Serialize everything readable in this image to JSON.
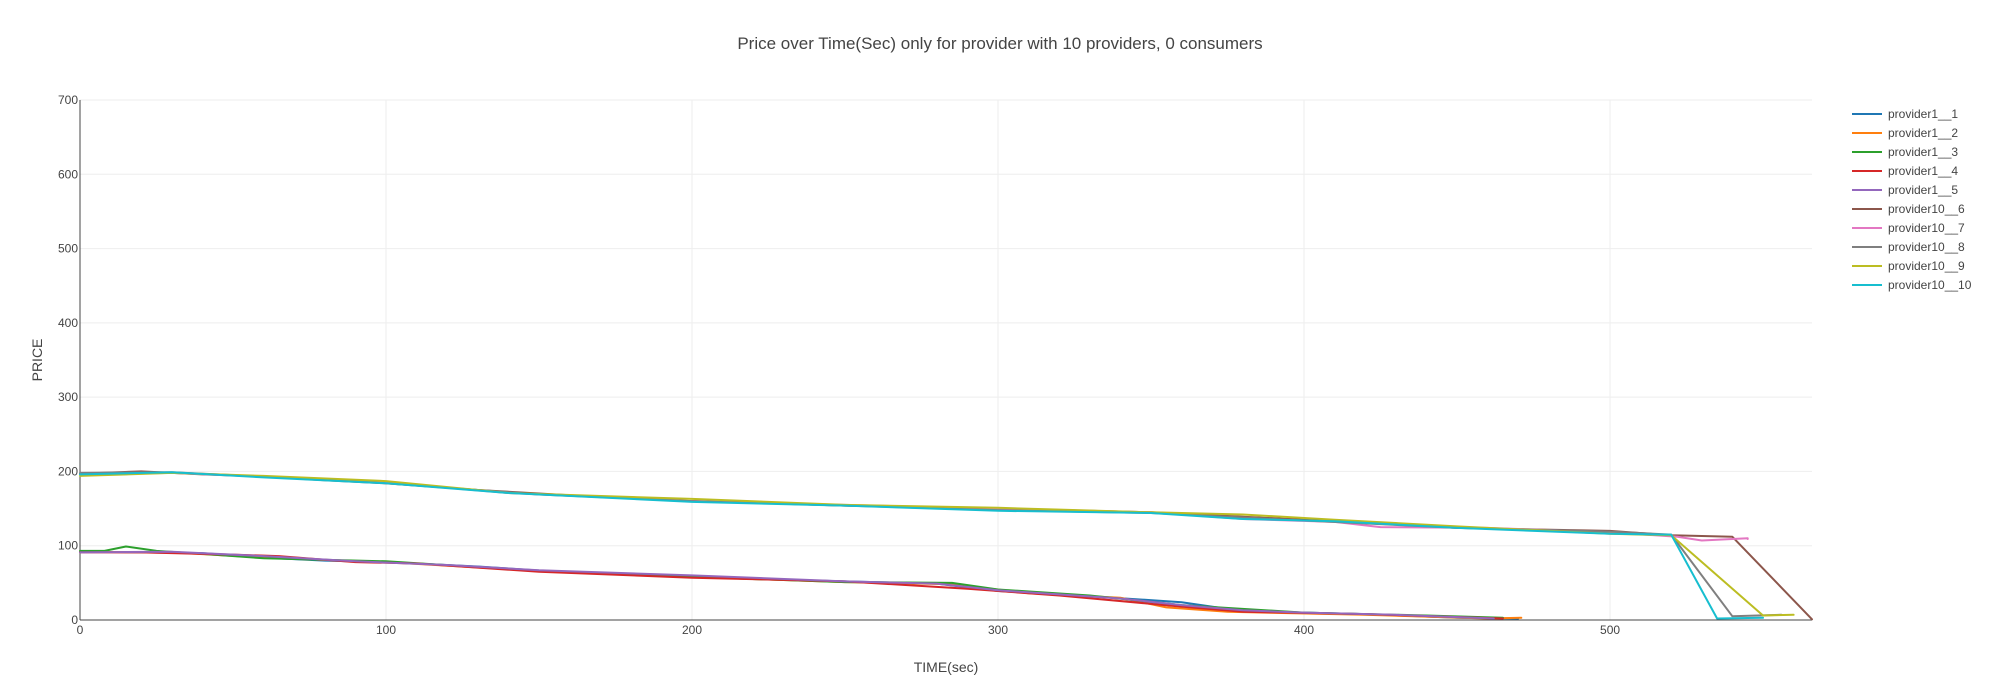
{
  "chart_data": {
    "type": "line",
    "title": "Price over Time(Sec) only for provider with 10 providers, 0 consumers",
    "xlabel": "TIME(sec)",
    "ylabel": "PRICE",
    "xlim": [
      0,
      566
    ],
    "ylim": [
      0,
      700
    ],
    "xticks": [
      0,
      100,
      200,
      300,
      400,
      500
    ],
    "yticks": [
      0,
      100,
      200,
      300,
      400,
      500,
      600,
      700
    ],
    "grid": true,
    "legend": "top-right",
    "series": [
      {
        "name": "provider1__1",
        "color": "#1f77b4",
        "x": [
          0,
          20,
          40,
          60,
          80,
          100,
          130,
          160,
          200,
          250,
          280,
          300,
          330,
          360,
          380,
          420,
          450,
          470
        ],
        "y": [
          92,
          91,
          90,
          84,
          80,
          78,
          72,
          64,
          58,
          52,
          49,
          39,
          32,
          24,
          12,
          8,
          3,
          2
        ]
      },
      {
        "name": "provider1__2",
        "color": "#ff7f0e",
        "x": [
          0,
          30,
          60,
          100,
          150,
          200,
          250,
          285,
          310,
          340,
          355,
          375,
          420,
          460,
          471
        ],
        "y": [
          92,
          91,
          84,
          78,
          66,
          58,
          51,
          48,
          36,
          30,
          17,
          11,
          7,
          2,
          3
        ]
      },
      {
        "name": "provider1__3",
        "color": "#2ca02c",
        "x": [
          0,
          8,
          15,
          25,
          40,
          60,
          100,
          150,
          200,
          250,
          285,
          300,
          330,
          360,
          400,
          440,
          465
        ],
        "y": [
          93,
          93,
          99,
          93,
          89,
          83,
          79,
          66,
          58,
          51,
          50,
          41,
          33,
          20,
          10,
          6,
          3
        ]
      },
      {
        "name": "provider1__4",
        "color": "#d62728",
        "x": [
          0,
          20,
          50,
          65,
          90,
          110,
          150,
          200,
          250,
          290,
          320,
          360,
          380,
          420,
          465
        ],
        "y": [
          91,
          91,
          88,
          86,
          78,
          76,
          65,
          57,
          52,
          42,
          33,
          18,
          11,
          8,
          2
        ]
      },
      {
        "name": "provider1__5",
        "color": "#9467bd",
        "x": [
          0,
          30,
          60,
          90,
          120,
          150,
          200,
          250,
          280,
          300,
          340,
          360,
          380,
          400,
          430,
          462
        ],
        "y": [
          91,
          92,
          86,
          79,
          74,
          67,
          60,
          52,
          49,
          40,
          29,
          20,
          13,
          10,
          7,
          2
        ]
      },
      {
        "name": "provider10__6",
        "color": "#8c564b",
        "x": [
          0,
          20,
          40,
          60,
          80,
          100,
          130,
          160,
          200,
          250,
          300,
          350,
          400,
          450,
          500,
          520,
          540,
          566
        ],
        "y": [
          197,
          200,
          196,
          193,
          188,
          184,
          175,
          168,
          160,
          154,
          150,
          145,
          135,
          124,
          120,
          114,
          112,
          1
        ]
      },
      {
        "name": "provider10__7",
        "color": "#e377c2",
        "x": [
          0,
          30,
          60,
          100,
          140,
          200,
          250,
          300,
          350,
          380,
          410,
          425,
          460,
          500,
          522,
          530,
          545,
          545
        ],
        "y": [
          196,
          198,
          193,
          185,
          171,
          160,
          155,
          150,
          145,
          136,
          132,
          125,
          124,
          118,
          112,
          107,
          110,
          109
        ]
      },
      {
        "name": "provider10__8",
        "color": "#7f7f7f",
        "x": [
          0,
          30,
          60,
          90,
          120,
          150,
          200,
          250,
          300,
          350,
          400,
          450,
          500,
          520,
          540,
          556
        ],
        "y": [
          198,
          199,
          193,
          187,
          178,
          169,
          160,
          154,
          148,
          144,
          134,
          124,
          119,
          115,
          5,
          7
        ]
      },
      {
        "name": "provider10__9",
        "color": "#bcbd22",
        "x": [
          0,
          30,
          60,
          100,
          140,
          200,
          250,
          300,
          350,
          380,
          410,
          450,
          500,
          520,
          550,
          560
        ],
        "y": [
          194,
          198,
          194,
          187,
          171,
          163,
          155,
          151,
          145,
          142,
          135,
          126,
          116,
          114,
          6,
          7
        ]
      },
      {
        "name": "provider10__10",
        "color": "#17becf",
        "x": [
          0,
          30,
          60,
          100,
          140,
          200,
          250,
          300,
          350,
          380,
          410,
          450,
          500,
          520,
          535,
          550
        ],
        "y": [
          196,
          199,
          192,
          184,
          171,
          159,
          154,
          147,
          144,
          136,
          133,
          124,
          116,
          115,
          2,
          3
        ]
      }
    ]
  }
}
